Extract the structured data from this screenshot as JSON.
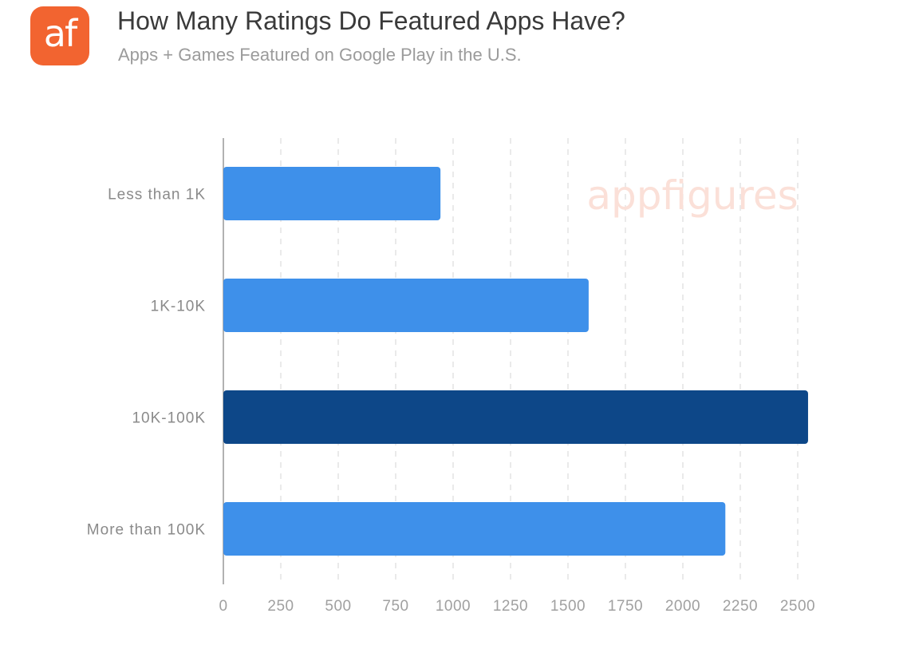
{
  "brand": {
    "logo_text": "af",
    "watermark": "appfigures"
  },
  "colors": {
    "bar": "#3e90ea",
    "highlight": "#0d4788",
    "logo_bg": "#f26430"
  },
  "chart_data": {
    "type": "bar",
    "orientation": "horizontal",
    "title": "How Many Ratings Do Featured Apps Have?",
    "subtitle": "Apps + Games Featured on Google Play in the U.S.",
    "categories": [
      "Less than 1K",
      "1K-10K",
      "10K-100K",
      "More than 100K"
    ],
    "values": [
      945,
      1590,
      2545,
      2185
    ],
    "highlight_index": 2,
    "xlim": [
      0,
      2500
    ],
    "xticks": [
      "0",
      "250",
      "500",
      "750",
      "1000",
      "1250",
      "1500",
      "1750",
      "2000",
      "2250",
      "2500"
    ],
    "xlabel": "",
    "ylabel": "",
    "grid": true
  }
}
